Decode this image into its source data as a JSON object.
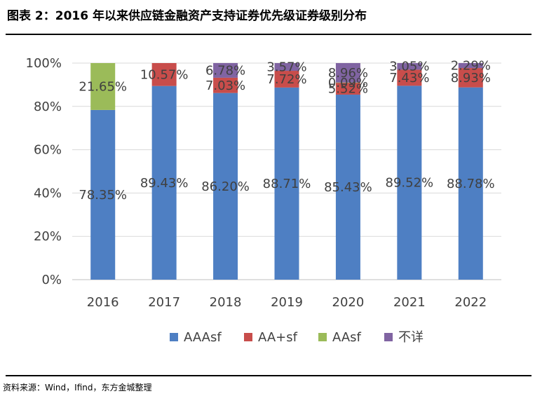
{
  "title": "图表 2：2016 年以来供应链金融资产支持证券优先级证券级别分布",
  "source": "资料来源：Wind，Ifind，东方金城整理",
  "chart_data": {
    "type": "bar",
    "stacked": true,
    "categories": [
      "2016",
      "2017",
      "2018",
      "2019",
      "2020",
      "2021",
      "2022"
    ],
    "ylim": [
      0,
      100
    ],
    "yticks": [
      "0%",
      "20%",
      "40%",
      "60%",
      "80%",
      "100%"
    ],
    "grid": true,
    "legend_position": "bottom",
    "series": [
      {
        "name": "AAAsf",
        "color": "#4e7fc3",
        "values": [
          78.35,
          89.43,
          86.2,
          88.71,
          85.43,
          89.52,
          88.78
        ],
        "labels": [
          "78.35%",
          "89.43%",
          "86.20%",
          "88.71%",
          "85.43%",
          "89.52%",
          "88.78%"
        ]
      },
      {
        "name": "AA+sf",
        "color": "#c84d4b",
        "values": [
          0.0,
          10.57,
          7.03,
          7.72,
          5.52,
          7.43,
          8.93
        ],
        "labels": [
          "",
          "10.57%",
          "7.03%",
          "7.72%",
          "5.52%",
          "7.43%",
          "8.93%"
        ]
      },
      {
        "name": "AAsf",
        "color": "#9bbb59",
        "values": [
          21.65,
          0.0,
          0.0,
          0.0,
          0.09,
          0.0,
          0.0
        ],
        "labels": [
          "21.65%",
          "",
          "",
          "",
          "0.09%",
          "",
          ""
        ]
      },
      {
        "name": "不详",
        "color": "#8064a2",
        "values": [
          0.0,
          0.0,
          6.78,
          3.57,
          8.96,
          3.05,
          2.29
        ],
        "labels": [
          "",
          "",
          "6.78%",
          "3.57%",
          "8.96%",
          "3.05%",
          "2.29%"
        ]
      }
    ]
  }
}
